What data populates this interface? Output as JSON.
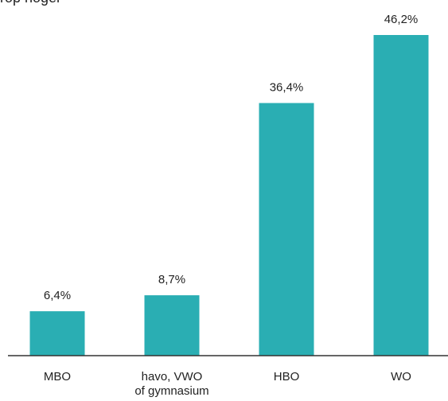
{
  "cropped_heading": "rop hoger",
  "chart_data": {
    "type": "bar",
    "categories": [
      "MBO",
      "havo, VWO\nof gymnasium",
      "HBO",
      "WO"
    ],
    "values": [
      6.4,
      8.7,
      36.4,
      46.2
    ],
    "value_labels": [
      "6,4%",
      "8,7%",
      "36,4%",
      "46,2%"
    ],
    "ylim": [
      0,
      55
    ],
    "grid": false,
    "legend": "none",
    "colors": {
      "bar": "#2AAEB3",
      "axis": "#333333",
      "text": "#222222"
    }
  }
}
